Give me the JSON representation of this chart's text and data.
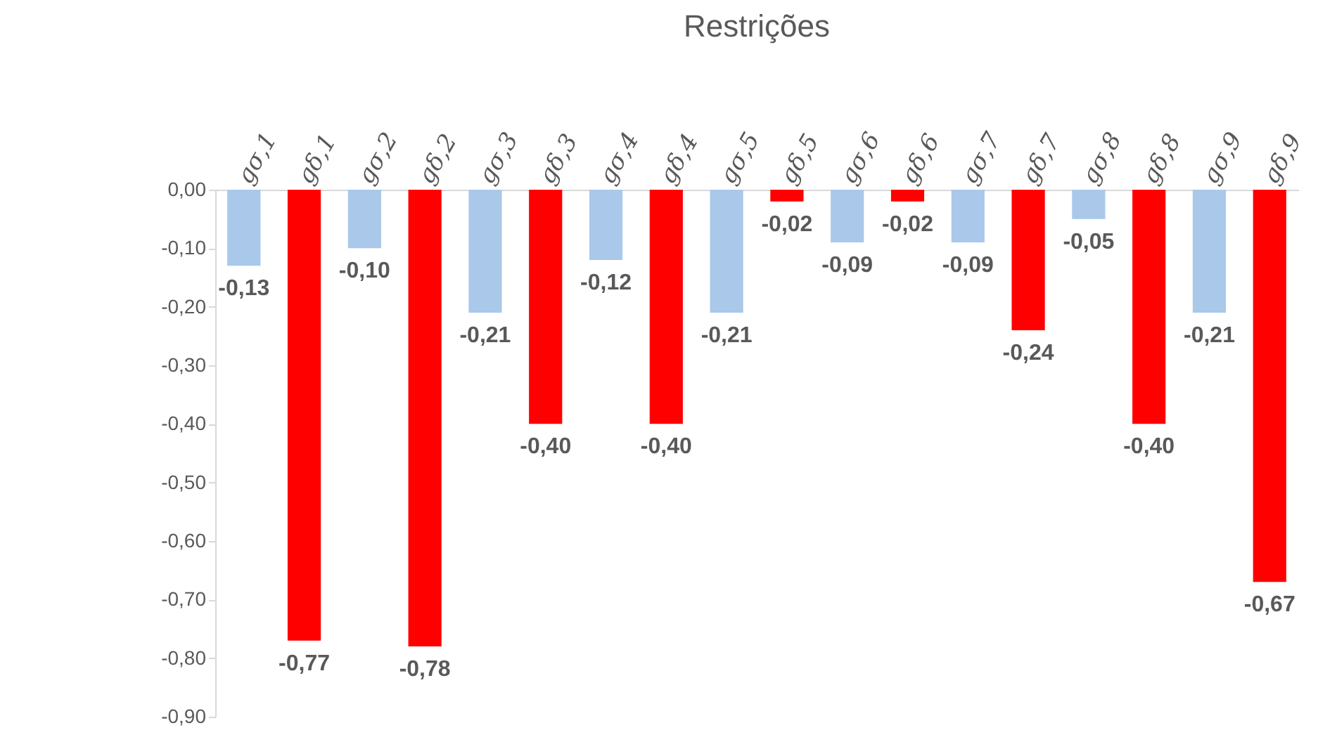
{
  "chart_data": {
    "type": "bar",
    "title": "Restrições",
    "categories": [
      "gσ,1",
      "gδ,1",
      "gσ,2",
      "gδ,2",
      "gσ,3",
      "gδ,3",
      "gσ,4",
      "gδ,4",
      "gσ,5",
      "gδ,5",
      "gσ,6",
      "gδ,6",
      "gσ,7",
      "gδ,7",
      "gσ,8",
      "gδ,8",
      "gσ,9",
      "gδ,9"
    ],
    "values": [
      -0.13,
      -0.77,
      -0.1,
      -0.78,
      -0.21,
      -0.4,
      -0.12,
      -0.4,
      -0.21,
      -0.02,
      -0.09,
      -0.02,
      -0.09,
      -0.24,
      -0.05,
      -0.4,
      -0.21,
      -0.67
    ],
    "value_labels": [
      "-0,13",
      "-0,77",
      "-0,10",
      "-0,78",
      "-0,21",
      "-0,40",
      "-0,12",
      "-0,40",
      "-0,21",
      "-0,02",
      "-0,09",
      "-0,02",
      "-0,09",
      "-0,24",
      "-0,05",
      "-0,40",
      "-0,21",
      "-0,67"
    ],
    "colors": [
      "#a9c8ea",
      "#ff0000",
      "#a9c8ea",
      "#ff0000",
      "#a9c8ea",
      "#ff0000",
      "#a9c8ea",
      "#ff0000",
      "#a9c8ea",
      "#ff0000",
      "#a9c8ea",
      "#ff0000",
      "#a9c8ea",
      "#ff0000",
      "#a9c8ea",
      "#ff0000",
      "#a9c8ea",
      "#ff0000"
    ],
    "ylim": [
      -0.9,
      0
    ],
    "yticks": [
      {
        "value": 0,
        "label": "0,00"
      },
      {
        "value": -0.1,
        "label": "-0,10"
      },
      {
        "value": -0.2,
        "label": "-0,20"
      },
      {
        "value": -0.3,
        "label": "-0,30"
      },
      {
        "value": -0.4,
        "label": "-0,40"
      },
      {
        "value": -0.5,
        "label": "-0,50"
      },
      {
        "value": -0.6,
        "label": "-0,60"
      },
      {
        "value": -0.7,
        "label": "-0,70"
      },
      {
        "value": -0.8,
        "label": "-0,80"
      },
      {
        "value": -0.9,
        "label": "-0,90"
      }
    ],
    "grid": false,
    "legend": false
  }
}
